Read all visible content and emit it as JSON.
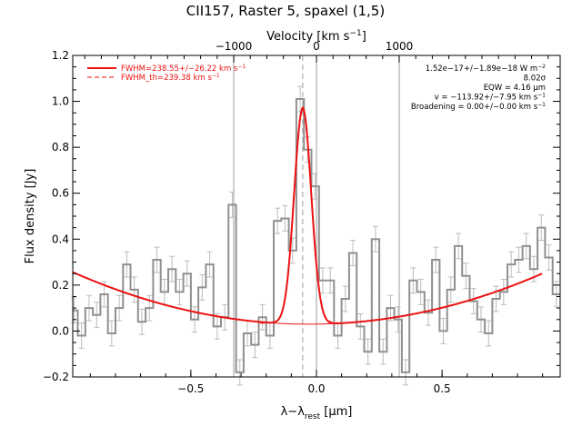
{
  "chart_data": {
    "type": "line",
    "title": "CII157, Raster 5, spaxel (1,5)",
    "xlabel_html": [
      "λ−λ",
      "rest",
      " [",
      "μ",
      "m]"
    ],
    "ylabel": "Flux density [Jy]",
    "top_axis_label": [
      "Velocity [km s",
      "−1",
      "]"
    ],
    "xlim": [
      -0.97,
      0.97
    ],
    "ylim": [
      -0.2,
      1.2
    ],
    "x_ticks": [
      -0.5,
      0.0,
      0.5
    ],
    "x_tick_labels": [
      "−0.5",
      "0.0",
      "0.5"
    ],
    "y_ticks": [
      -0.2,
      0.0,
      0.2,
      0.4,
      0.6,
      0.8,
      1.0,
      1.2
    ],
    "y_tick_labels": [
      "−0.2",
      "0.0",
      "0.2",
      "0.4",
      "0.6",
      "0.8",
      "1.0",
      "1.2"
    ],
    "top_ticks_um": [
      -0.3293,
      0.0,
      0.3293
    ],
    "top_tick_labels": [
      "−1000",
      "0",
      "1000"
    ],
    "vertical_lines_um": [
      -0.3293,
      0.0,
      0.3293
    ],
    "line_center_um": -0.0547,
    "legend": [
      {
        "label": "FWHM=238.55+/−26.22 km s",
        "sup": "−1",
        "style": "solid"
      },
      {
        "label": "FWHM_th=239.38 km s",
        "sup": "−1",
        "style": "dashed"
      }
    ],
    "annotations": [
      {
        "text": "1.52e−17+/−1.89e−18 W m",
        "sup": "−2"
      },
      {
        "text": "8.02σ",
        "sup": ""
      },
      {
        "text": "EQW = 4.16 μm",
        "sup": ""
      },
      {
        "text": "v = −113.92+/−7.95 km s",
        "sup": "−1"
      },
      {
        "text": "Broadening = 0.00+/−0.00 km s",
        "sup": "−1"
      }
    ],
    "data_step": {
      "x": [
        -0.965,
        -0.935,
        -0.905,
        -0.875,
        -0.845,
        -0.815,
        -0.785,
        -0.755,
        -0.725,
        -0.695,
        -0.665,
        -0.635,
        -0.605,
        -0.575,
        -0.545,
        -0.515,
        -0.485,
        -0.455,
        -0.425,
        -0.395,
        -0.365,
        -0.335,
        -0.305,
        -0.275,
        -0.245,
        -0.215,
        -0.185,
        -0.155,
        -0.125,
        -0.095,
        -0.065,
        -0.035,
        -0.005,
        0.025,
        0.055,
        0.085,
        0.115,
        0.145,
        0.175,
        0.205,
        0.235,
        0.265,
        0.295,
        0.325,
        0.355,
        0.385,
        0.415,
        0.445,
        0.475,
        0.505,
        0.535,
        0.565,
        0.595,
        0.625,
        0.655,
        0.685,
        0.715,
        0.745,
        0.775,
        0.805,
        0.835,
        0.865,
        0.895,
        0.925,
        0.955
      ],
      "y": [
        0.09,
        -0.02,
        0.1,
        0.07,
        0.16,
        -0.01,
        0.1,
        0.29,
        0.18,
        0.04,
        0.1,
        0.31,
        0.17,
        0.27,
        0.17,
        0.25,
        0.05,
        0.19,
        0.29,
        0.02,
        0.06,
        0.55,
        -0.18,
        -0.01,
        -0.06,
        0.06,
        -0.02,
        0.48,
        0.49,
        0.35,
        1.01,
        0.79,
        0.63,
        0.22,
        0.22,
        -0.02,
        0.14,
        0.34,
        0.02,
        -0.09,
        0.4,
        -0.09,
        0.1,
        0.05,
        -0.18,
        0.22,
        0.17,
        0.08,
        0.31,
        0.0,
        0.18,
        0.37,
        0.24,
        0.13,
        0.05,
        -0.01,
        0.14,
        0.17,
        0.29,
        0.31,
        0.37,
        0.27,
        0.45,
        0.32,
        0.16
      ]
    },
    "fit_gauss": {
      "amplitude": 0.94,
      "center": -0.0547,
      "sigma": 0.034
    },
    "continuum_poly": {
      "a": 0.03,
      "b": 0.015,
      "c": 0.256
    },
    "colors": {
      "data": "#909090",
      "fit": "#ee1111",
      "guide": "#a0a0a0",
      "axis": "#000000"
    }
  }
}
